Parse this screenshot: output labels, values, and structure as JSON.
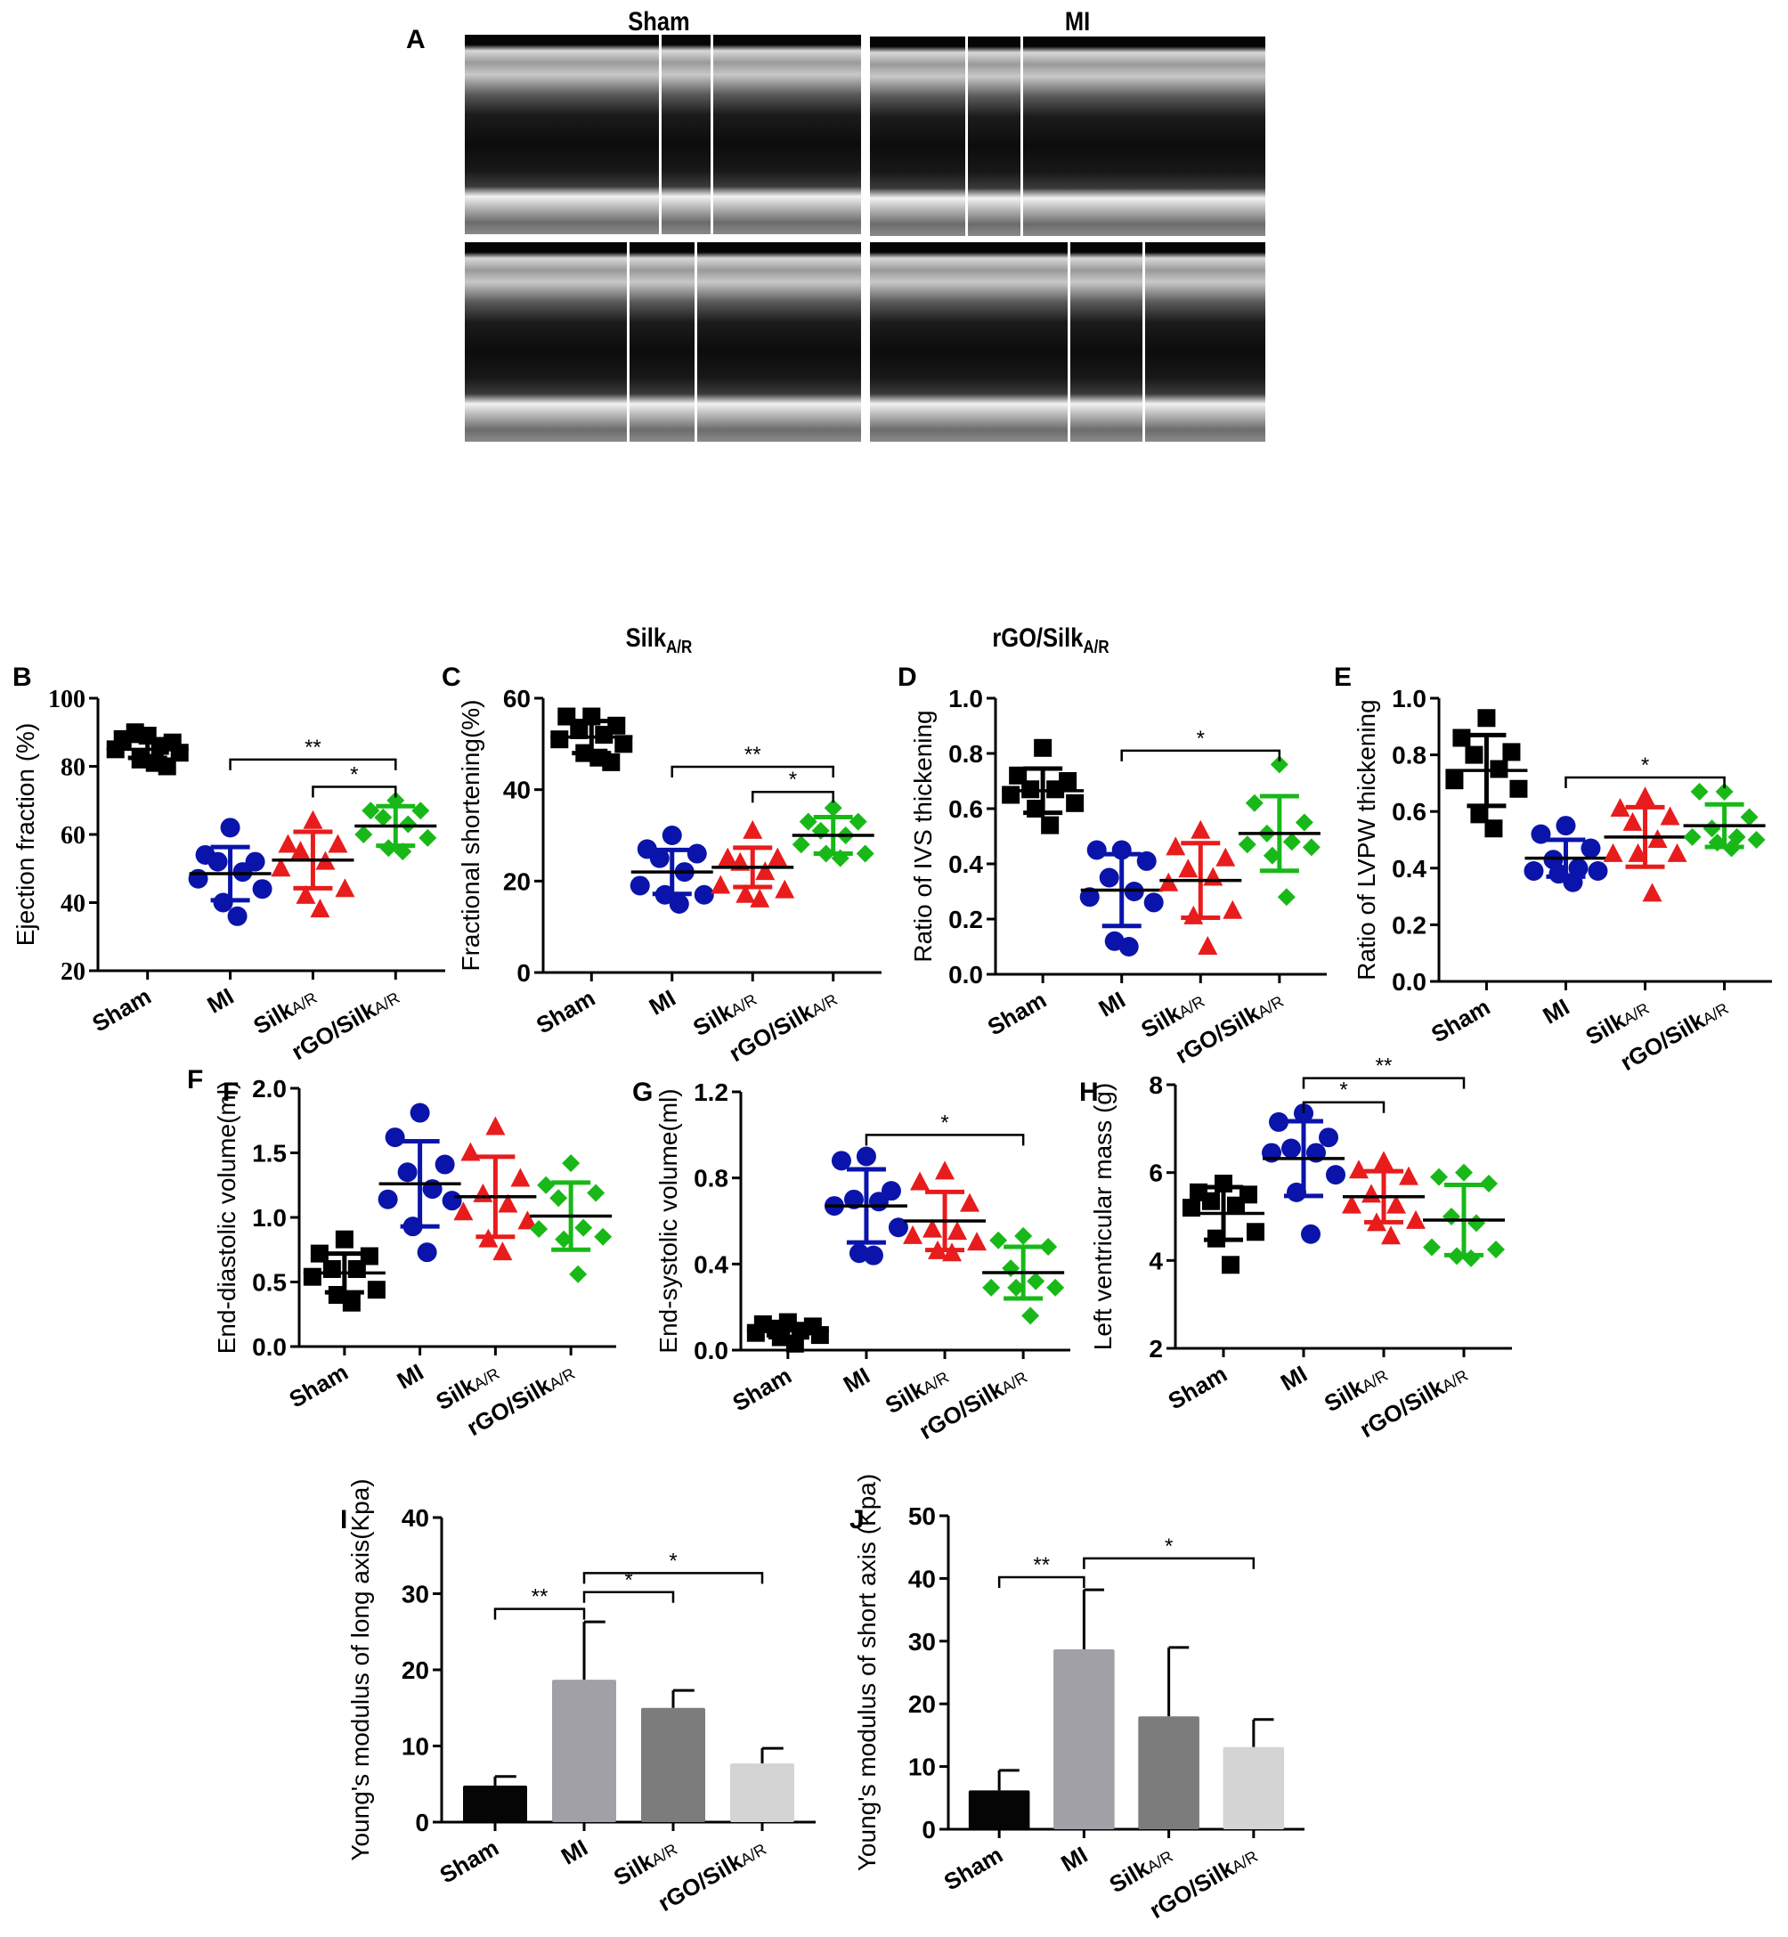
{
  "figure": {
    "panel_A": {
      "letter": "A",
      "images": [
        {
          "id": "sham",
          "title": "Sham",
          "title_sub": "",
          "title_pos": "top",
          "separators": [
            0.49,
            0.62
          ]
        },
        {
          "id": "mi",
          "title": "MI",
          "title_sub": "",
          "title_pos": "top",
          "separators": [
            0.24,
            0.38
          ]
        },
        {
          "id": "silk",
          "title": "Silk",
          "title_sub": "A/R",
          "title_pos": "bottom",
          "separators": [
            0.41,
            0.58
          ]
        },
        {
          "id": "rgo",
          "title": "rGO/Silk",
          "title_sub": "A/R",
          "title_pos": "bottom",
          "separators": [
            0.5,
            0.69
          ]
        }
      ]
    },
    "groups": [
      "Sham",
      "MI",
      "SilkA/R",
      "rGO/SilkA/R"
    ],
    "group_labels": [
      {
        "main": "Sham",
        "sub": ""
      },
      {
        "main": "MI",
        "sub": ""
      },
      {
        "main": "Silk",
        "sub": "A/R"
      },
      {
        "main": "rGO/Silk",
        "sub": "A/R"
      }
    ],
    "colors": {
      "sham": "#000000",
      "mi": "#0a14aa",
      "silk": "#e81c1c",
      "rgo": "#18b818",
      "bar_sham": "#050505",
      "bar_mi": "#a0a0a6",
      "bar_silk": "#7c7c7c",
      "bar_rgo": "#d4d4d4"
    }
  },
  "chart_data": [
    {
      "panel": "B",
      "type": "scatter",
      "ylabel": "Ejection fraction (%)",
      "ylim": [
        20,
        100
      ],
      "yticks": [
        "20",
        "40",
        "60",
        "80",
        "100"
      ],
      "categories": [
        "Sham",
        "MI",
        "SilkA/R",
        "rGO/SilkA/R"
      ],
      "series": [
        {
          "name": "Sham",
          "marker": "square",
          "mean": 85,
          "sd": 2.5,
          "points": [
            89,
            88,
            87,
            90,
            86,
            85,
            84,
            82,
            81,
            80
          ]
        },
        {
          "name": "MI",
          "marker": "circle",
          "mean": 48.5,
          "sd": 7.8,
          "points": [
            62,
            54,
            52,
            52,
            49,
            47,
            44,
            40,
            36
          ]
        },
        {
          "name": "SilkA/R",
          "marker": "triangle",
          "mean": 52.5,
          "sd": 8.3,
          "points": [
            64,
            57,
            57,
            55,
            52,
            50,
            44,
            42,
            38
          ]
        },
        {
          "name": "rGO/SilkA/R",
          "marker": "diamond",
          "mean": 62.5,
          "sd": 5.8,
          "points": [
            70,
            67,
            67,
            65,
            63,
            60,
            59,
            56,
            55
          ]
        }
      ],
      "significance": [
        {
          "from": 1,
          "to": 3,
          "label": "**",
          "y": 82
        },
        {
          "from": 2,
          "to": 3,
          "label": "*",
          "y": 74
        }
      ]
    },
    {
      "panel": "C",
      "type": "scatter",
      "ylabel": "Fractional shortening(%)",
      "ylim": [
        0,
        60
      ],
      "yticks": [
        "0",
        "20",
        "40",
        "60"
      ],
      "categories": [
        "Sham",
        "MI",
        "SilkA/R",
        "rGO/SilkA/R"
      ],
      "series": [
        {
          "name": "Sham",
          "marker": "square",
          "mean": 51.5,
          "sd": 3.5,
          "points": [
            56,
            56,
            54,
            53,
            52,
            51,
            50,
            48,
            47,
            46
          ]
        },
        {
          "name": "MI",
          "marker": "circle",
          "mean": 22,
          "sd": 4.8,
          "points": [
            30,
            27,
            26,
            25,
            22,
            19,
            17,
            17,
            15
          ]
        },
        {
          "name": "SilkA/R",
          "marker": "triangle",
          "mean": 23,
          "sd": 4.3,
          "points": [
            31,
            25,
            25,
            24,
            22,
            19,
            18,
            17,
            16
          ]
        },
        {
          "name": "rGO/SilkA/R",
          "marker": "diamond",
          "mean": 30,
          "sd": 4,
          "points": [
            36,
            33,
            33,
            31,
            30,
            28,
            26,
            26,
            25
          ]
        }
      ],
      "significance": [
        {
          "from": 1,
          "to": 3,
          "label": "**",
          "y": 45
        },
        {
          "from": 2,
          "to": 3,
          "label": "*",
          "y": 39.5
        }
      ]
    },
    {
      "panel": "D",
      "type": "scatter",
      "ylabel": "Ratio of IVS thickening",
      "ylim": [
        0,
        1.0
      ],
      "yticks": [
        "0.0",
        "0.2",
        "0.4",
        "0.6",
        "0.8",
        "1.0"
      ],
      "categories": [
        "Sham",
        "MI",
        "SilkA/R",
        "rGO/SilkA/R"
      ],
      "series": [
        {
          "name": "Sham",
          "marker": "square",
          "mean": 0.665,
          "sd": 0.08,
          "points": [
            0.82,
            0.72,
            0.7,
            0.67,
            0.67,
            0.65,
            0.62,
            0.6,
            0.54
          ]
        },
        {
          "name": "MI",
          "marker": "circle",
          "mean": 0.305,
          "sd": 0.13,
          "points": [
            0.45,
            0.45,
            0.41,
            0.35,
            0.3,
            0.28,
            0.26,
            0.12,
            0.1
          ]
        },
        {
          "name": "SilkA/R",
          "marker": "triangle",
          "mean": 0.34,
          "sd": 0.135,
          "points": [
            0.52,
            0.46,
            0.42,
            0.38,
            0.35,
            0.33,
            0.23,
            0.21,
            0.1
          ]
        },
        {
          "name": "rGO/SilkA/R",
          "marker": "diamond",
          "mean": 0.51,
          "sd": 0.135,
          "points": [
            0.76,
            0.62,
            0.55,
            0.51,
            0.48,
            0.47,
            0.46,
            0.43,
            0.28
          ]
        }
      ],
      "significance": [
        {
          "from": 1,
          "to": 3,
          "label": "*",
          "y": 0.81
        }
      ]
    },
    {
      "panel": "E",
      "type": "scatter",
      "ylabel": "Ratio of LVPW thickening",
      "ylim": [
        0,
        1.0
      ],
      "yticks": [
        "0.0",
        "0.2",
        "0.4",
        "0.6",
        "0.8",
        "1.0"
      ],
      "categories": [
        "Sham",
        "MI",
        "SilkA/R",
        "rGO/SilkA/R"
      ],
      "series": [
        {
          "name": "Sham",
          "marker": "square",
          "mean": 0.745,
          "sd": 0.125,
          "points": [
            0.93,
            0.86,
            0.81,
            0.8,
            0.75,
            0.71,
            0.68,
            0.59,
            0.54
          ]
        },
        {
          "name": "MI",
          "marker": "circle",
          "mean": 0.435,
          "sd": 0.065,
          "points": [
            0.55,
            0.52,
            0.47,
            0.43,
            0.4,
            0.39,
            0.39,
            0.38,
            0.35
          ]
        },
        {
          "name": "SilkA/R",
          "marker": "triangle",
          "mean": 0.51,
          "sd": 0.105,
          "points": [
            0.65,
            0.61,
            0.58,
            0.56,
            0.5,
            0.45,
            0.45,
            0.45,
            0.31
          ]
        },
        {
          "name": "rGO/SilkA/R",
          "marker": "diamond",
          "mean": 0.55,
          "sd": 0.075,
          "points": [
            0.67,
            0.67,
            0.58,
            0.54,
            0.51,
            0.51,
            0.5,
            0.49,
            0.47
          ]
        }
      ],
      "significance": [
        {
          "from": 1,
          "to": 3,
          "label": "*",
          "y": 0.72
        }
      ]
    },
    {
      "panel": "F",
      "type": "scatter",
      "ylabel": "End-diastolic volume(ml)",
      "ylim": [
        0,
        2.0
      ],
      "yticks": [
        "0.0",
        "0.5",
        "1.0",
        "1.5",
        "2.0"
      ],
      "categories": [
        "Sham",
        "MI",
        "SilkA/R",
        "rGO/SilkA/R"
      ],
      "series": [
        {
          "name": "Sham",
          "marker": "square",
          "mean": 0.57,
          "sd": 0.15,
          "points": [
            0.83,
            0.72,
            0.7,
            0.6,
            0.6,
            0.54,
            0.44,
            0.4,
            0.34
          ]
        },
        {
          "name": "MI",
          "marker": "circle",
          "mean": 1.26,
          "sd": 0.33,
          "points": [
            1.81,
            1.62,
            1.41,
            1.35,
            1.22,
            1.14,
            1.13,
            0.93,
            0.73
          ]
        },
        {
          "name": "SilkA/R",
          "marker": "triangle",
          "mean": 1.16,
          "sd": 0.31,
          "points": [
            1.7,
            1.5,
            1.3,
            1.18,
            1.1,
            1.04,
            0.97,
            0.83,
            0.73
          ]
        },
        {
          "name": "rGO/SilkA/R",
          "marker": "diamond",
          "mean": 1.01,
          "sd": 0.26,
          "points": [
            1.42,
            1.25,
            1.19,
            1.15,
            0.92,
            0.91,
            0.85,
            0.83,
            0.56
          ]
        }
      ],
      "significance": []
    },
    {
      "panel": "G",
      "type": "scatter",
      "ylabel": "End-systolic volume(ml)",
      "ylim": [
        0,
        1.2
      ],
      "yticks": [
        "0.0",
        "0.4",
        "0.8",
        "1.2"
      ],
      "categories": [
        "Sham",
        "MI",
        "SilkA/R",
        "rGO/SilkA/R"
      ],
      "series": [
        {
          "name": "Sham",
          "marker": "square",
          "mean": 0.09,
          "sd": 0.03,
          "points": [
            0.13,
            0.12,
            0.11,
            0.1,
            0.09,
            0.08,
            0.07,
            0.06,
            0.03
          ]
        },
        {
          "name": "MI",
          "marker": "circle",
          "mean": 0.67,
          "sd": 0.17,
          "points": [
            0.9,
            0.88,
            0.74,
            0.7,
            0.69,
            0.67,
            0.57,
            0.45,
            0.44
          ]
        },
        {
          "name": "SilkA/R",
          "marker": "triangle",
          "mean": 0.6,
          "sd": 0.135,
          "points": [
            0.83,
            0.78,
            0.68,
            0.56,
            0.55,
            0.53,
            0.5,
            0.46,
            0.45
          ]
        },
        {
          "name": "rGO/SilkA/R",
          "marker": "diamond",
          "mean": 0.36,
          "sd": 0.12,
          "points": [
            0.53,
            0.51,
            0.48,
            0.38,
            0.32,
            0.29,
            0.29,
            0.29,
            0.16
          ]
        }
      ],
      "significance": [
        {
          "from": 1,
          "to": 3,
          "label": "*",
          "y": 1.0
        }
      ]
    },
    {
      "panel": "H",
      "type": "scatter",
      "ylabel": "Left ventricular mass (g)",
      "ylim": [
        2,
        8
      ],
      "yticks": [
        "2",
        "4",
        "6",
        "8"
      ],
      "categories": [
        "Sham",
        "MI",
        "SilkA/R",
        "rGO/SilkA/R"
      ],
      "series": [
        {
          "name": "Sham",
          "marker": "square",
          "mean": 5.07,
          "sd": 0.6,
          "points": [
            5.75,
            5.55,
            5.5,
            5.35,
            5.25,
            5.2,
            4.65,
            4.5,
            3.9
          ]
        },
        {
          "name": "MI",
          "marker": "circle",
          "mean": 6.32,
          "sd": 0.85,
          "points": [
            7.35,
            7.15,
            6.8,
            6.55,
            6.45,
            6.45,
            5.95,
            5.55,
            4.6
          ]
        },
        {
          "name": "SilkA/R",
          "marker": "triangle",
          "mean": 5.45,
          "sd": 0.58,
          "points": [
            6.25,
            6.05,
            5.9,
            5.5,
            5.25,
            5.25,
            4.9,
            4.85,
            4.55
          ]
        },
        {
          "name": "rGO/SilkA/R",
          "marker": "diamond",
          "mean": 4.92,
          "sd": 0.8,
          "points": [
            6.0,
            5.9,
            5.75,
            5.0,
            4.85,
            4.3,
            4.25,
            4.1,
            4.05
          ]
        }
      ],
      "significance": [
        {
          "from": 1,
          "to": 2,
          "label": "*",
          "y": 7.6
        },
        {
          "from": 1,
          "to": 3,
          "label": "**",
          "y": 8.15
        }
      ]
    },
    {
      "panel": "I",
      "type": "bar",
      "ylabel": "Young's modulus of long axis(Kpa)",
      "ylim": [
        0,
        40
      ],
      "yticks": [
        "0",
        "10",
        "20",
        "30",
        "40"
      ],
      "categories": [
        "Sham",
        "MI",
        "SilkA/R",
        "rGO/SilkA/R"
      ],
      "values": [
        4.8,
        18.7,
        15.0,
        7.7
      ],
      "errors": [
        1.2,
        7.6,
        2.3,
        2.0
      ],
      "significance": [
        {
          "from": 0,
          "to": 1,
          "label": "**",
          "y": 28
        },
        {
          "from": 1,
          "to": 2,
          "label": "*",
          "y": 30.2
        },
        {
          "from": 1,
          "to": 3,
          "label": "*",
          "y": 32.7
        }
      ]
    },
    {
      "panel": "J",
      "type": "bar",
      "ylabel": "Young's modulus of short axis (Kpa)",
      "ylim": [
        0,
        50
      ],
      "yticks": [
        "0",
        "10",
        "20",
        "30",
        "40",
        "50"
      ],
      "categories": [
        "Sham",
        "MI",
        "SilkA/R",
        "rGO/SilkA/R"
      ],
      "values": [
        6.2,
        28.7,
        18.0,
        13.1
      ],
      "errors": [
        3.2,
        9.5,
        11.0,
        4.4
      ],
      "significance": [
        {
          "from": 0,
          "to": 1,
          "label": "**",
          "y": 40.2
        },
        {
          "from": 1,
          "to": 3,
          "label": "*",
          "y": 43.2
        }
      ]
    }
  ]
}
